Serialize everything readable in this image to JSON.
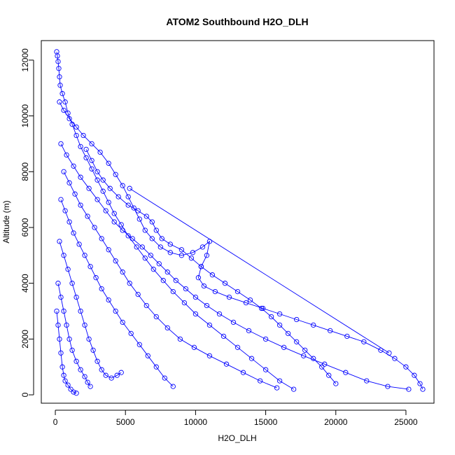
{
  "chart_data": {
    "type": "scatter",
    "title": "ATOM2 Southbound H2O_DLH",
    "xlabel": "H2O_DLH",
    "ylabel": "Altitude (m)",
    "xlim": [
      -1000,
      27000
    ],
    "ylim": [
      -300,
      12700
    ],
    "xticks": [
      0,
      5000,
      10000,
      15000,
      20000,
      25000
    ],
    "yticks": [
      0,
      2000,
      4000,
      6000,
      8000,
      10000,
      12000
    ],
    "grid": false,
    "legend": "none",
    "marker": "open-circle",
    "color": "#0000ff",
    "series": [
      {
        "values": [
          [
            100,
            12300
          ],
          [
            150,
            12150
          ],
          [
            200,
            11950
          ],
          [
            250,
            11700
          ],
          [
            300,
            11400
          ],
          [
            350,
            11100
          ],
          [
            500,
            10800
          ],
          [
            700,
            10500
          ],
          [
            900,
            10100
          ],
          [
            1200,
            9700
          ],
          [
            1500,
            9300
          ],
          [
            1800,
            8900
          ],
          [
            2200,
            8500
          ],
          [
            2600,
            8100
          ],
          [
            3000,
            7700
          ],
          [
            3400,
            7300
          ],
          [
            3800,
            6900
          ],
          [
            4200,
            6500
          ],
          [
            4700,
            6100
          ],
          [
            5200,
            5700
          ],
          [
            5800,
            5300
          ],
          [
            6400,
            4900
          ],
          [
            7000,
            4500
          ],
          [
            7700,
            4100
          ],
          [
            8400,
            3700
          ],
          [
            9200,
            3300
          ],
          [
            10000,
            2900
          ],
          [
            11000,
            2500
          ],
          [
            12000,
            2100
          ],
          [
            13000,
            1700
          ],
          [
            14000,
            1300
          ],
          [
            15000,
            900
          ],
          [
            16000,
            500
          ],
          [
            17000,
            200
          ]
        ]
      },
      {
        "values": [
          [
            300,
            10500
          ],
          [
            600,
            10200
          ],
          [
            1000,
            9900
          ],
          [
            1500,
            9600
          ],
          [
            2000,
            9300
          ],
          [
            2600,
            9000
          ],
          [
            3200,
            8700
          ],
          [
            3800,
            8300
          ],
          [
            4300,
            7900
          ],
          [
            4800,
            7500
          ],
          [
            5200,
            7100
          ],
          [
            5600,
            6700
          ],
          [
            6000,
            6300
          ],
          [
            6400,
            5900
          ],
          [
            6900,
            5600
          ],
          [
            7500,
            5300
          ],
          [
            8200,
            5100
          ],
          [
            9000,
            5000
          ],
          [
            9800,
            5100
          ],
          [
            10500,
            5300
          ],
          [
            11000,
            5500
          ],
          [
            10800,
            5000
          ],
          [
            10400,
            4600
          ],
          [
            10200,
            4200
          ],
          [
            10600,
            3900
          ],
          [
            11400,
            3700
          ],
          [
            12400,
            3500
          ],
          [
            13600,
            3300
          ],
          [
            14800,
            3100
          ],
          [
            16000,
            2900
          ],
          [
            17200,
            2700
          ],
          [
            18400,
            2500
          ],
          [
            19600,
            2300
          ],
          [
            20800,
            2100
          ],
          [
            22000,
            1900
          ],
          [
            23200,
            1600
          ],
          [
            24200,
            1300
          ],
          [
            25000,
            1000
          ],
          [
            25600,
            700
          ],
          [
            26000,
            400
          ],
          [
            26200,
            200
          ]
        ]
      },
      {
        "values": [
          [
            400,
            9000
          ],
          [
            800,
            8600
          ],
          [
            1300,
            8200
          ],
          [
            1800,
            7800
          ],
          [
            2400,
            7400
          ],
          [
            3000,
            7000
          ],
          [
            3600,
            6600
          ],
          [
            4200,
            6200
          ],
          [
            4800,
            5900
          ],
          [
            5500,
            5600
          ],
          [
            6200,
            5300
          ],
          [
            6800,
            5000
          ],
          [
            7400,
            4700
          ],
          [
            8000,
            4400
          ],
          [
            8600,
            4100
          ],
          [
            9300,
            3800
          ],
          [
            10000,
            3500
          ],
          [
            10800,
            3200
          ],
          [
            11700,
            2900
          ],
          [
            12700,
            2600
          ],
          [
            13800,
            2300
          ],
          [
            15000,
            2000
          ],
          [
            16300,
            1700
          ],
          [
            17700,
            1400
          ],
          [
            19200,
            1100
          ],
          [
            20700,
            800
          ],
          [
            22200,
            500
          ],
          [
            23700,
            300
          ],
          [
            25200,
            200
          ]
        ]
      },
      {
        "values": [
          [
            2200,
            8800
          ],
          [
            2600,
            8400
          ],
          [
            3000,
            8000
          ],
          [
            3400,
            7700
          ],
          [
            3900,
            7400
          ],
          [
            4500,
            7100
          ],
          [
            5200,
            6800
          ],
          [
            5900,
            6600
          ],
          [
            6500,
            6400
          ],
          [
            6900,
            6200
          ],
          [
            7200,
            5900
          ],
          [
            7600,
            5600
          ],
          [
            8200,
            5400
          ],
          [
            9000,
            5200
          ],
          [
            9700,
            4900
          ],
          [
            10400,
            4600
          ],
          [
            11200,
            4300
          ],
          [
            12100,
            4000
          ],
          [
            13000,
            3700
          ],
          [
            13900,
            3400
          ],
          [
            14700,
            3100
          ],
          [
            15400,
            2800
          ],
          [
            16000,
            2500
          ],
          [
            16600,
            2200
          ],
          [
            17200,
            1900
          ],
          [
            17800,
            1600
          ],
          [
            18400,
            1300
          ],
          [
            19000,
            1000
          ],
          [
            19500,
            700
          ],
          [
            20000,
            400
          ]
        ]
      },
      {
        "values": [
          [
            600,
            8000
          ],
          [
            1000,
            7600
          ],
          [
            1400,
            7200
          ],
          [
            1800,
            6800
          ],
          [
            2300,
            6400
          ],
          [
            2800,
            6000
          ],
          [
            3300,
            5600
          ],
          [
            3800,
            5200
          ],
          [
            4300,
            4800
          ],
          [
            4800,
            4400
          ],
          [
            5300,
            4000
          ],
          [
            5900,
            3600
          ],
          [
            6500,
            3200
          ],
          [
            7200,
            2800
          ],
          [
            8000,
            2400
          ],
          [
            8900,
            2000
          ],
          [
            9900,
            1700
          ],
          [
            11000,
            1400
          ],
          [
            12200,
            1100
          ],
          [
            13400,
            800
          ],
          [
            14600,
            500
          ],
          [
            15800,
            250
          ]
        ]
      },
      {
        "values": [
          [
            400,
            7000
          ],
          [
            700,
            6600
          ],
          [
            1000,
            6200
          ],
          [
            1300,
            5800
          ],
          [
            1700,
            5400
          ],
          [
            2100,
            5000
          ],
          [
            2500,
            4600
          ],
          [
            2900,
            4200
          ],
          [
            3300,
            3800
          ],
          [
            3800,
            3400
          ],
          [
            4300,
            3000
          ],
          [
            4800,
            2600
          ],
          [
            5400,
            2200
          ],
          [
            6000,
            1800
          ],
          [
            6600,
            1400
          ],
          [
            7200,
            1000
          ],
          [
            7800,
            600
          ],
          [
            8400,
            300
          ]
        ]
      },
      {
        "values": [
          [
            300,
            5500
          ],
          [
            600,
            5000
          ],
          [
            900,
            4500
          ],
          [
            1200,
            4000
          ],
          [
            1500,
            3500
          ],
          [
            1800,
            3000
          ],
          [
            2100,
            2500
          ],
          [
            2400,
            2000
          ],
          [
            2700,
            1600
          ],
          [
            3000,
            1200
          ],
          [
            3300,
            900
          ],
          [
            3600,
            700
          ],
          [
            4000,
            600
          ],
          [
            4400,
            700
          ],
          [
            4700,
            800
          ]
        ]
      },
      {
        "values": [
          [
            200,
            4000
          ],
          [
            400,
            3500
          ],
          [
            600,
            3000
          ],
          [
            800,
            2500
          ],
          [
            1000,
            2000
          ],
          [
            1200,
            1600
          ],
          [
            1500,
            1200
          ],
          [
            1800,
            900
          ],
          [
            2100,
            650
          ],
          [
            2300,
            450
          ],
          [
            2500,
            300
          ]
        ]
      },
      {
        "values": [
          [
            100,
            3000
          ],
          [
            200,
            2500
          ],
          [
            300,
            2000
          ],
          [
            400,
            1500
          ],
          [
            500,
            1000
          ],
          [
            600,
            700
          ],
          [
            700,
            500
          ],
          [
            900,
            350
          ],
          [
            1100,
            200
          ],
          [
            1300,
            100
          ],
          [
            1500,
            60
          ]
        ]
      },
      {
        "values": [
          [
            5300,
            7400
          ],
          [
            23800,
            1500
          ]
        ]
      }
    ]
  }
}
